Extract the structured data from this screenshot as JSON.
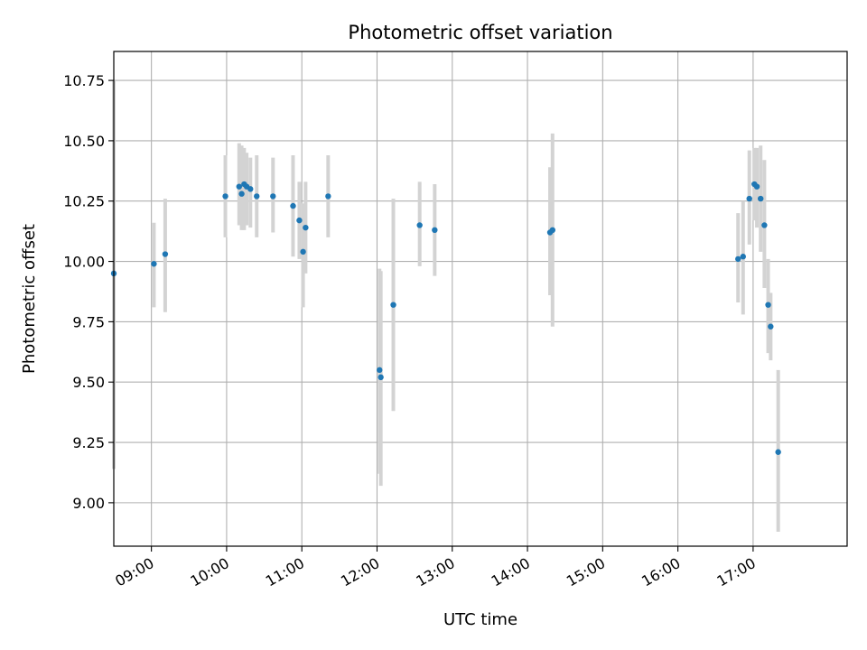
{
  "chart_data": {
    "type": "scatter",
    "title": "Photometric offset variation",
    "xlabel": "UTC time",
    "ylabel": "Photometric offset",
    "xlim": [
      "08:30",
      "18:15"
    ],
    "ylim": [
      8.82,
      10.87
    ],
    "grid": true,
    "x_ticks": [
      "09:00",
      "10:00",
      "11:00",
      "12:00",
      "13:00",
      "14:00",
      "15:00",
      "16:00",
      "17:00"
    ],
    "y_ticks": [
      "9.00",
      "9.25",
      "9.50",
      "9.75",
      "10.00",
      "10.25",
      "10.50",
      "10.75"
    ],
    "colors": {
      "point": "#1f77b4",
      "errorbar": "#d3d3d3",
      "grid": "#b0b0b0"
    },
    "points": [
      {
        "x": "08:30",
        "y": 9.95,
        "lo": 9.14,
        "hi": 10.75
      },
      {
        "x": "09:02",
        "y": 9.99,
        "lo": 9.81,
        "hi": 10.16
      },
      {
        "x": "09:11",
        "y": 10.03,
        "lo": 9.79,
        "hi": 10.26
      },
      {
        "x": "09:59",
        "y": 10.27,
        "lo": 10.1,
        "hi": 10.44
      },
      {
        "x": "10:10",
        "y": 10.31,
        "lo": 10.15,
        "hi": 10.49
      },
      {
        "x": "10:12",
        "y": 10.28,
        "lo": 10.13,
        "hi": 10.48
      },
      {
        "x": "10:14",
        "y": 10.32,
        "lo": 10.13,
        "hi": 10.47
      },
      {
        "x": "10:16",
        "y": 10.31,
        "lo": 10.15,
        "hi": 10.45
      },
      {
        "x": "10:19",
        "y": 10.3,
        "lo": 10.14,
        "hi": 10.43
      },
      {
        "x": "10:24",
        "y": 10.27,
        "lo": 10.1,
        "hi": 10.44
      },
      {
        "x": "10:37",
        "y": 10.27,
        "lo": 10.12,
        "hi": 10.43
      },
      {
        "x": "10:53",
        "y": 10.23,
        "lo": 10.02,
        "hi": 10.44
      },
      {
        "x": "10:58",
        "y": 10.17,
        "lo": 10.01,
        "hi": 10.33
      },
      {
        "x": "11:01",
        "y": 10.04,
        "lo": 9.81,
        "hi": 10.24
      },
      {
        "x": "11:03",
        "y": 10.14,
        "lo": 9.95,
        "hi": 10.33
      },
      {
        "x": "11:21",
        "y": 10.27,
        "lo": 10.1,
        "hi": 10.44
      },
      {
        "x": "12:02",
        "y": 9.55,
        "lo": 9.12,
        "hi": 9.97
      },
      {
        "x": "12:03",
        "y": 9.52,
        "lo": 9.07,
        "hi": 9.96
      },
      {
        "x": "12:13",
        "y": 9.82,
        "lo": 9.38,
        "hi": 10.26
      },
      {
        "x": "12:34",
        "y": 10.15,
        "lo": 9.98,
        "hi": 10.33
      },
      {
        "x": "12:46",
        "y": 10.13,
        "lo": 9.94,
        "hi": 10.32
      },
      {
        "x": "14:18",
        "y": 10.12,
        "lo": 9.86,
        "hi": 10.39
      },
      {
        "x": "14:20",
        "y": 10.13,
        "lo": 9.73,
        "hi": 10.53
      },
      {
        "x": "16:48",
        "y": 10.01,
        "lo": 9.83,
        "hi": 10.2
      },
      {
        "x": "16:52",
        "y": 10.02,
        "lo": 9.78,
        "hi": 10.25
      },
      {
        "x": "16:57",
        "y": 10.26,
        "lo": 10.07,
        "hi": 10.46
      },
      {
        "x": "17:01",
        "y": 10.32,
        "lo": 10.17,
        "hi": 10.47
      },
      {
        "x": "17:03",
        "y": 10.31,
        "lo": 10.14,
        "hi": 10.47
      },
      {
        "x": "17:06",
        "y": 10.26,
        "lo": 10.04,
        "hi": 10.48
      },
      {
        "x": "17:09",
        "y": 10.15,
        "lo": 9.89,
        "hi": 10.42
      },
      {
        "x": "17:12",
        "y": 9.82,
        "lo": 9.62,
        "hi": 10.01
      },
      {
        "x": "17:14",
        "y": 9.73,
        "lo": 9.59,
        "hi": 9.87
      },
      {
        "x": "17:20",
        "y": 9.21,
        "lo": 8.88,
        "hi": 9.55
      }
    ]
  }
}
